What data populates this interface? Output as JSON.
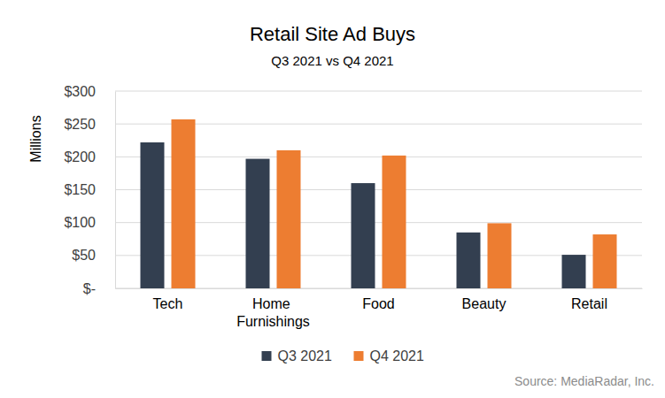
{
  "chart_data": {
    "type": "bar",
    "title": "Retail Site Ad Buys",
    "subtitle": "Q3 2021 vs Q4 2021",
    "y_label": "Millions",
    "categories": [
      "Tech",
      "Home Furnishings",
      "Food",
      "Beauty",
      "Retail"
    ],
    "series": [
      {
        "name": "Q3 2021",
        "color": "#333f50",
        "values": [
          222,
          197,
          160,
          85,
          51
        ]
      },
      {
        "name": "Q4 2021",
        "color": "#ed7d31",
        "values": [
          257,
          210,
          202,
          99,
          82
        ]
      }
    ],
    "ylim": [
      0,
      300
    ],
    "yticks": [
      {
        "value": 0,
        "label": "$-"
      },
      {
        "value": 50,
        "label": "$50"
      },
      {
        "value": 100,
        "label": "$100"
      },
      {
        "value": 150,
        "label": "$150"
      },
      {
        "value": 200,
        "label": "$200"
      },
      {
        "value": 250,
        "label": "$250"
      },
      {
        "value": 300,
        "label": "$300"
      }
    ],
    "grid": true,
    "legend": "bottom",
    "annotations": [
      "Source: MediaRadar, Inc."
    ]
  }
}
